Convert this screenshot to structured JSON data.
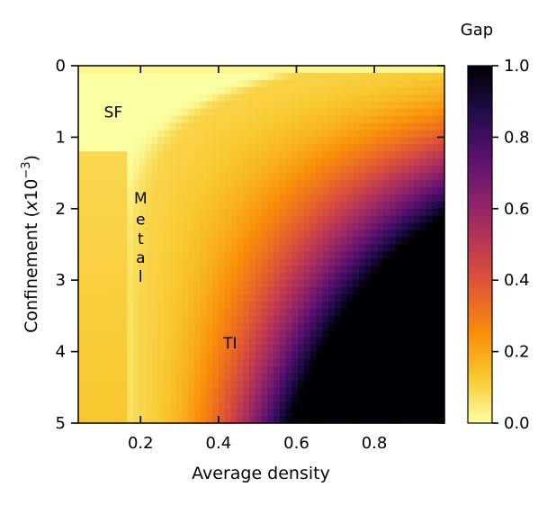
{
  "chart_data": {
    "type": "heatmap",
    "title": "",
    "xlabel": "Average density",
    "ylabel_main": "Confinement (",
    "ylabel_italic": "x",
    "ylabel_base": "10",
    "ylabel_exp": "−3",
    "ylabel_close": ")",
    "xlim": [
      0.04,
      0.98
    ],
    "ylim": [
      5,
      0
    ],
    "xticks": [
      0.2,
      0.4,
      0.6,
      0.8
    ],
    "xtick_labels": [
      "0.2",
      "0.4",
      "0.6",
      "0.8"
    ],
    "yticks": [
      0,
      1,
      2,
      3,
      4,
      5
    ],
    "ytick_labels": [
      "0",
      "1",
      "2",
      "3",
      "4",
      "5"
    ],
    "grid_nx": 60,
    "grid_ny": 50,
    "colormap": "inferno_r",
    "colormap_stops": [
      "#fcffa4",
      "#f8c932",
      "#f98e09",
      "#e45a31",
      "#bc3754",
      "#8a226a",
      "#57106e",
      "#1f0c48",
      "#000004"
    ],
    "colorbar": {
      "title": "Gap",
      "range": [
        0.0,
        1.0
      ],
      "ticks": [
        0.0,
        0.2,
        0.4,
        0.6,
        0.8,
        1.0
      ],
      "tick_labels": [
        "0.0",
        "0.2",
        "0.4",
        "0.6",
        "0.8",
        "1.0"
      ]
    },
    "annotations": [
      {
        "text": "SF",
        "x": 0.13,
        "y": 0.65
      },
      {
        "text": "M",
        "x": 0.2,
        "y": 1.85
      },
      {
        "text": "e",
        "x": 0.2,
        "y": 2.15
      },
      {
        "text": "t",
        "x": 0.2,
        "y": 2.42
      },
      {
        "text": "a",
        "x": 0.2,
        "y": 2.68
      },
      {
        "text": "l",
        "x": 0.2,
        "y": 2.95
      },
      {
        "text": "TI",
        "x": 0.43,
        "y": 3.88
      }
    ],
    "regions": {
      "superfluid": "gap 0 at low density and weak confinement",
      "metal_line": "gap ~0.05 along density 0.16-0.19",
      "insulator_corner_max_gap": 1.0
    }
  }
}
